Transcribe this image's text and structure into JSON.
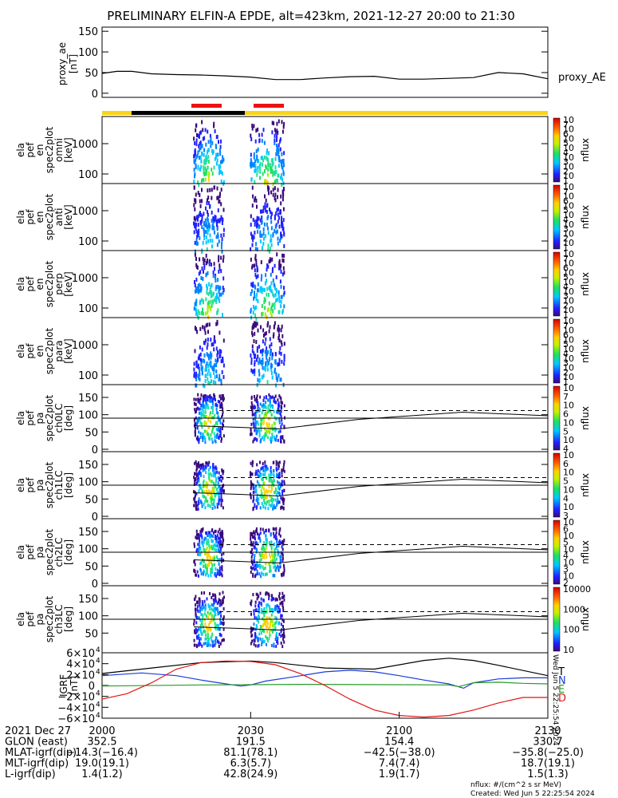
{
  "title": "PRELIMINARY ELFIN-A EPDE, alt=423km, 2021-12-27 20:00 to 21:30",
  "colors": {
    "ae": "#000000",
    "bar_yellow": "#f7d417",
    "bar_black": "#000000",
    "bar_red": "#ee1111",
    "bx": "#000000",
    "by": "#1a3cd8",
    "bz": "#2a9a2a",
    "btotal": "#e01515"
  },
  "proxy_ae": {
    "ylabel": [
      "proxy_ae",
      "[nT]"
    ],
    "ticks": [
      "150",
      "100",
      "50",
      "0"
    ],
    "ylim": [
      0,
      150
    ],
    "label": "proxy_AE",
    "x": [
      0,
      3,
      6,
      10,
      15,
      20,
      25,
      30,
      35,
      40,
      45,
      50,
      55,
      60,
      65,
      70,
      75,
      80,
      85,
      90
    ],
    "values": [
      48,
      53,
      53,
      47,
      45,
      44,
      42,
      39,
      33,
      33,
      37,
      40,
      41,
      34,
      34,
      36,
      38,
      50,
      47,
      35
    ]
  },
  "spectro_panels": [
    {
      "ylabel": [
        "ela",
        "pef",
        "en",
        "spec2plot",
        "omni",
        "[keV]"
      ],
      "ticks": [
        "1000",
        "100"
      ],
      "cb_ticks": [
        "10",
        "7",
        "10",
        "6",
        "10",
        "5",
        "10",
        "4",
        "10",
        "3",
        "10",
        "2",
        "10",
        "1"
      ],
      "cb_label": "nflux"
    },
    {
      "ylabel": [
        "ela",
        "pef",
        "en",
        "spec2plot",
        "anti",
        "[keV]"
      ],
      "ticks": [
        "1000",
        "100"
      ],
      "cb_ticks": [
        "10",
        "7",
        "10",
        "6",
        "10",
        "5",
        "10",
        "4",
        "10",
        "3",
        "10",
        "2",
        "10",
        "1"
      ],
      "cb_label": "nflux"
    },
    {
      "ylabel": [
        "ela",
        "pef",
        "en",
        "spec2plot",
        "perp",
        "[keV]"
      ],
      "ticks": [
        "1000",
        "100"
      ],
      "cb_ticks": [
        "10",
        "7",
        "10",
        "6",
        "10",
        "5",
        "10",
        "4",
        "10",
        "3",
        "10",
        "2",
        "10",
        "1"
      ],
      "cb_label": "nflux"
    },
    {
      "ylabel": [
        "ela",
        "pef",
        "en",
        "spec2plot",
        "para",
        "[keV]"
      ],
      "ticks": [
        "1000",
        "100"
      ],
      "cb_ticks": [
        "10",
        "7",
        "10",
        "6",
        "10",
        "5",
        "10",
        "4",
        "10",
        "3",
        "10",
        "2",
        "10",
        "1"
      ],
      "cb_label": "nflux"
    }
  ],
  "pa_panels": [
    {
      "ylabel": [
        "ela",
        "pef",
        "pa",
        "spec2plot",
        "ch0LC",
        "[deg]"
      ],
      "ticks": [
        "150",
        "100",
        "50",
        "0"
      ],
      "cb_ticks": [
        "10",
        "7",
        "10",
        "6",
        "10",
        "5",
        "10",
        "4"
      ],
      "cb_label": "nflux"
    },
    {
      "ylabel": [
        "ela",
        "pef",
        "pa",
        "spec2plot",
        "ch1LC",
        "[deg]"
      ],
      "ticks": [
        "150",
        "100",
        "50",
        "0"
      ],
      "cb_ticks": [
        "10",
        "6",
        "10",
        "5",
        "10",
        "4",
        "10",
        "3"
      ],
      "cb_label": "nflux"
    },
    {
      "ylabel": [
        "ela",
        "pef",
        "pa",
        "spec2plot",
        "ch2LC",
        "[deg]"
      ],
      "ticks": [
        "150",
        "100",
        "50",
        "0"
      ],
      "cb_ticks": [
        "10",
        "6",
        "10",
        "5",
        "10",
        "4",
        "10",
        "3",
        "10",
        "2"
      ],
      "cb_label": "nflux"
    },
    {
      "ylabel": [
        "ela",
        "pef",
        "pa",
        "spec2plot",
        "ch3LC",
        "[deg]"
      ],
      "ticks": [
        "150",
        "100",
        "50"
      ],
      "cb_ticks": [
        "10000",
        "1000",
        "100",
        "10"
      ],
      "cb_label": "nflux"
    }
  ],
  "igrf": {
    "ylabel": [
      "IGRF",
      "[nT]"
    ],
    "ticks": [
      "6×10",
      "4×10",
      "2×10",
      "0",
      "−2×10",
      "−4×10",
      "−6×10"
    ],
    "tick_exp": "4",
    "ylim": [
      -60000,
      60000
    ],
    "legend": [
      "T",
      "N",
      "E",
      "D"
    ],
    "side_text": "Wed Jun  5 22:25:54 2024",
    "series": [
      {
        "name": "T",
        "x": [
          0,
          10,
          20,
          30,
          35,
          45,
          55,
          65,
          70,
          75,
          80,
          90
        ],
        "values": [
          22000,
          32000,
          42000,
          45000,
          42000,
          32000,
          30000,
          46000,
          50000,
          46000,
          37000,
          18000
        ]
      },
      {
        "name": "N",
        "x": [
          0,
          8,
          15,
          20,
          25,
          28,
          30,
          33,
          38,
          45,
          50,
          55,
          60,
          65,
          70,
          73,
          75,
          80,
          85,
          90
        ],
        "values": [
          18000,
          23000,
          18000,
          10000,
          3000,
          -1000,
          1000,
          8000,
          15000,
          25000,
          28000,
          25000,
          18000,
          10000,
          3000,
          -5000,
          5000,
          12000,
          14000,
          14000
        ]
      },
      {
        "name": "E",
        "x": [
          0,
          20,
          40,
          60,
          70,
          72,
          75,
          80,
          85,
          90
        ],
        "values": [
          -1000,
          1000,
          2000,
          1500,
          1000,
          -2000,
          5000,
          6000,
          4000,
          3000
        ]
      },
      {
        "name": "D",
        "x": [
          0,
          5,
          10,
          15,
          20,
          25,
          30,
          35,
          40,
          45,
          50,
          55,
          60,
          65,
          70,
          75,
          80,
          85,
          90
        ],
        "values": [
          -25000,
          -15000,
          5000,
          30000,
          42000,
          45000,
          44000,
          38000,
          22000,
          0,
          -25000,
          -45000,
          -55000,
          -58000,
          -55000,
          -45000,
          -32000,
          -22000,
          -22000
        ]
      }
    ]
  },
  "x_axis": {
    "ticks": [
      "2000",
      "2030",
      "2100",
      "2130"
    ],
    "tick_positions": [
      0,
      30,
      60,
      90
    ]
  },
  "ephem": [
    {
      "label": "2021 Dec 27",
      "vals": [
        "2000",
        "2030",
        "2100",
        "2130"
      ]
    },
    {
      "label": "GLON (east)",
      "vals": [
        "352.5",
        "191.5",
        "154.4",
        "330.7"
      ]
    },
    {
      "label": "MLAT-igrf(dip)",
      "vals": [
        "−14.3(−16.4)",
        "81.1(78.1)",
        "−42.5(−38.0)",
        "−35.8(−25.0)"
      ]
    },
    {
      "label": "MLT-igrf(dip)",
      "vals": [
        "19.0(19.1)",
        "6.3(5.7)",
        "7.4(7.4)",
        "18.7(19.1)"
      ]
    },
    {
      "label": "L-igrf(dip)",
      "vals": [
        "1.4(1.2)",
        "42.8(24.9)",
        "1.9(1.7)",
        "1.5(1.3)"
      ]
    }
  ],
  "footer": [
    "nflux: #/(cm^2 s sr MeV)",
    "Created: Wed Jun  5 22:25:54 2024"
  ]
}
